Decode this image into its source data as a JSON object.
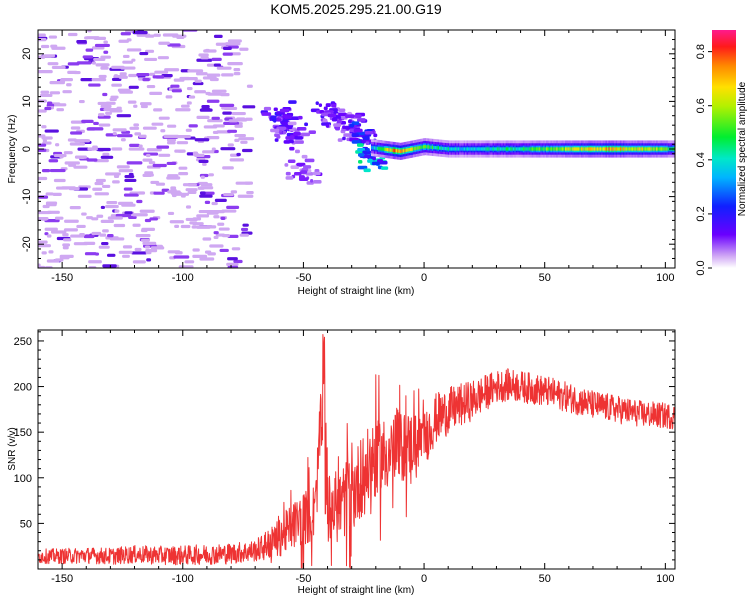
{
  "title": "KOM5.2025.295.21.00.G19",
  "colors": {
    "snr_line": "#ee3333",
    "axes": "#000000",
    "weak_speckle": "#cfa8f2",
    "medium_speckle": "#8c3cf0",
    "strong_speckle": "#5a10e0"
  },
  "chart_data": [
    {
      "type": "heatmap",
      "name": "spectrogram",
      "xlabel": "Height of straight line (km)",
      "ylabel": "Frequency (Hz)",
      "xlim": [
        -160,
        104
      ],
      "ylim": [
        -25,
        25
      ],
      "xticks": [
        -150,
        -100,
        -50,
        0,
        50,
        100
      ],
      "yticks": [
        -20,
        -10,
        0,
        10,
        20
      ],
      "xtick_labels": [
        "-150",
        "-100",
        "-50",
        "0",
        "50",
        "100"
      ],
      "ytick_labels": [
        "-20",
        "-10",
        "0",
        "10",
        "20"
      ],
      "colorbar": {
        "label": "Normalized spectral amplitude",
        "range": [
          0.0,
          0.88
        ],
        "ticks": [
          0.0,
          0.2,
          0.4,
          0.6,
          0.8
        ],
        "tick_labels": [
          "0.0",
          "0.2",
          "0.4",
          "0.6",
          "0.8"
        ],
        "colormap": "rainbow"
      },
      "noise_region_x": [
        -160,
        -72
      ],
      "scatter_clusters": [
        {
          "x": -60,
          "y": 7,
          "amp": 0.14
        },
        {
          "x": -58,
          "y": 5,
          "amp": 0.12
        },
        {
          "x": -54,
          "y": 3,
          "amp": 0.1
        },
        {
          "x": -40,
          "y": 8,
          "amp": 0.12
        },
        {
          "x": -36,
          "y": 6,
          "amp": 0.1
        },
        {
          "x": -30,
          "y": 4,
          "amp": 0.11
        },
        {
          "x": -25,
          "y": 2,
          "amp": 0.18
        },
        {
          "x": -22,
          "y": -1,
          "amp": 0.3
        },
        {
          "x": -19,
          "y": -2,
          "amp": 0.28
        },
        {
          "x": -50,
          "y": -5,
          "amp": 0.08
        }
      ],
      "main_echo": {
        "x_range": [
          -22,
          104
        ],
        "center_hz": [
          {
            "x": -22,
            "y": 0.3
          },
          {
            "x": -10,
            "y": -0.5
          },
          {
            "x": 0,
            "y": 0.5
          },
          {
            "x": 10,
            "y": 0.0
          },
          {
            "x": 50,
            "y": 0.0
          },
          {
            "x": 104,
            "y": 0.0
          }
        ],
        "peak_amp": [
          {
            "x": -22,
            "y": 0.3
          },
          {
            "x": -12,
            "y": 0.75
          },
          {
            "x": 0,
            "y": 0.5
          },
          {
            "x": 15,
            "y": 0.35
          },
          {
            "x": 40,
            "y": 0.45
          },
          {
            "x": 60,
            "y": 0.6
          },
          {
            "x": 75,
            "y": 0.7
          },
          {
            "x": 95,
            "y": 0.6
          },
          {
            "x": 104,
            "y": 0.45
          }
        ]
      }
    },
    {
      "type": "line",
      "name": "snr",
      "xlabel": "Height of straight line (km)",
      "ylabel": "SNR (v/v)",
      "xlim": [
        -160,
        104
      ],
      "ylim": [
        0,
        262
      ],
      "xticks": [
        -150,
        -100,
        -50,
        0,
        50,
        100
      ],
      "yticks": [
        50,
        100,
        150,
        200,
        250
      ],
      "xtick_labels": [
        "-150",
        "-100",
        "-50",
        "0",
        "50",
        "100"
      ],
      "ytick_labels": [
        "50",
        "100",
        "150",
        "200",
        "250"
      ],
      "series": [
        {
          "name": "SNR",
          "x": [
            -160,
            -150,
            -140,
            -130,
            -120,
            -110,
            -100,
            -90,
            -80,
            -70,
            -65,
            -60,
            -55,
            -50,
            -45,
            -43,
            -40,
            -35,
            -30,
            -25,
            -20,
            -15,
            -10,
            -5,
            0,
            5,
            10,
            20,
            30,
            35,
            40,
            50,
            60,
            70,
            80,
            90,
            100,
            104
          ],
          "y": [
            14,
            14,
            15,
            14,
            16,
            15,
            15,
            16,
            17,
            20,
            26,
            34,
            46,
            56,
            62,
            160,
            65,
            70,
            82,
            105,
            120,
            128,
            132,
            138,
            142,
            165,
            173,
            185,
            200,
            202,
            200,
            195,
            188,
            180,
            175,
            170,
            168,
            167
          ],
          "spike": {
            "x": -41.5,
            "y": 262
          },
          "noise_amplitude": [
            {
              "x": -160,
              "y": 8
            },
            {
              "x": -70,
              "y": 12
            },
            {
              "x": -50,
              "y": 30
            },
            {
              "x": -30,
              "y": 45
            },
            {
              "x": -10,
              "y": 40
            },
            {
              "x": 0,
              "y": 30
            },
            {
              "x": 30,
              "y": 18
            },
            {
              "x": 104,
              "y": 14
            }
          ]
        }
      ]
    }
  ]
}
